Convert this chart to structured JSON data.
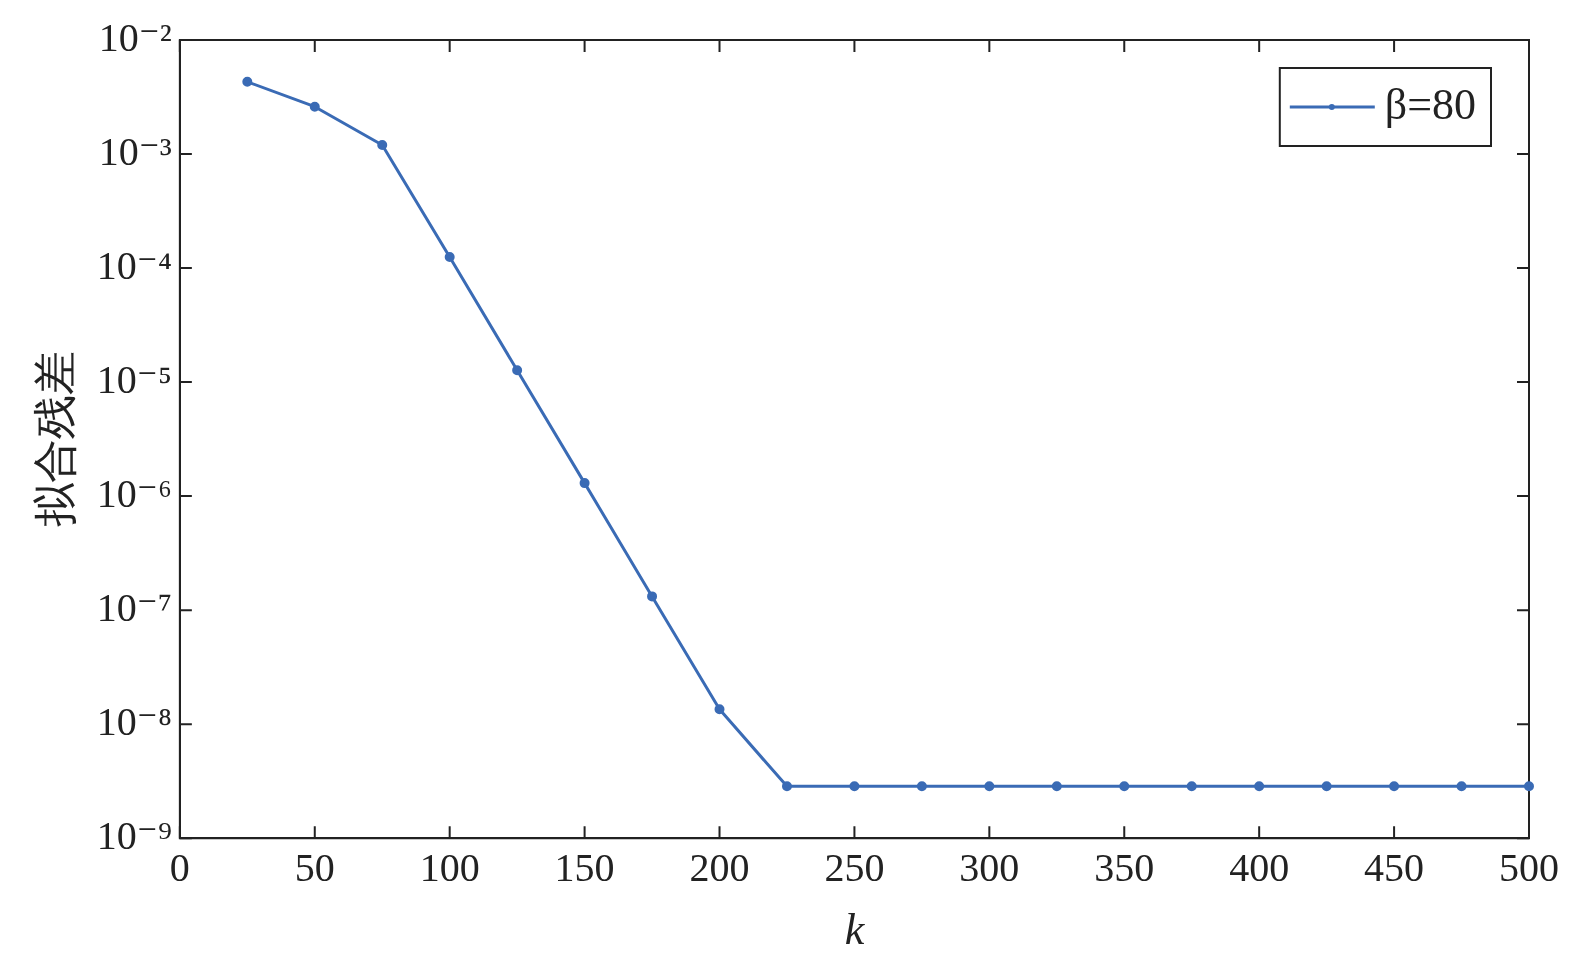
{
  "chart_data": {
    "type": "line",
    "xlabel": "k",
    "ylabel": "拟合残差",
    "log": "y",
    "legend": "top right",
    "grid": false,
    "marker": "circle",
    "line_style": "solid",
    "x": [
      25,
      50,
      75,
      100,
      125,
      150,
      175,
      200,
      225,
      250,
      275,
      300,
      325,
      350,
      375,
      400,
      425,
      450,
      475,
      500
    ],
    "series": [
      {
        "name": "β=80",
        "color": "#3a6bb5",
        "values": [
          0.0043,
          0.0026,
          0.0012,
          0.000125,
          1.27e-05,
          1.3e-06,
          1.32e-07,
          1.35e-08,
          2.85e-09,
          2.85e-09,
          2.85e-09,
          2.85e-09,
          2.85e-09,
          2.85e-09,
          2.85e-09,
          2.85e-09,
          2.85e-09,
          2.85e-09,
          2.85e-09,
          2.85e-09
        ]
      }
    ],
    "xlim": [
      0,
      500
    ],
    "xticks": [
      0,
      50,
      100,
      150,
      200,
      250,
      300,
      350,
      400,
      450,
      500
    ],
    "ylim": [
      1e-09,
      0.01
    ],
    "yticks": [
      {
        "value": 1e-09,
        "label": "10⁻⁹"
      },
      {
        "value": 1e-08,
        "label": "10⁻⁸"
      },
      {
        "value": 1e-07,
        "label": "10⁻⁷"
      },
      {
        "value": 1e-06,
        "label": "10⁻⁶"
      },
      {
        "value": 1e-05,
        "label": "10⁻⁵"
      },
      {
        "value": 0.0001,
        "label": "10⁻⁴"
      },
      {
        "value": 0.001,
        "label": "10⁻³"
      },
      {
        "value": 0.01,
        "label": "10⁻²"
      }
    ]
  }
}
